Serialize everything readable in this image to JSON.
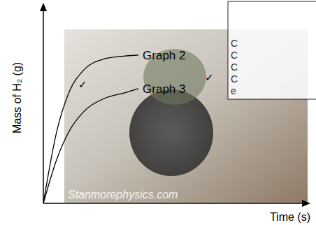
{
  "chart_data": {
    "type": "line",
    "x_label": "Time (s)",
    "y_label": "Mass of H₂ (g)",
    "x": [
      0,
      0.5,
      1,
      1.5,
      2.3,
      3.1,
      3.6
    ],
    "series": [
      {
        "name": "Graph 2",
        "color": "#000000",
        "values": [
          0,
          3.6,
          5.7,
          6.7,
          7.3,
          7.45,
          7.5
        ]
      },
      {
        "name": "Graph 3",
        "color": "#000000",
        "values": [
          0,
          2.2,
          3.7,
          4.6,
          5.3,
          5.6,
          5.8
        ]
      }
    ],
    "xlim": [
      0,
      10
    ],
    "ylim": [
      0,
      10
    ],
    "tick_labels": false,
    "grid": false,
    "annotations": [
      "✓",
      "✓"
    ],
    "watermark": "Stanmorephysics.com",
    "box_text": [
      "C",
      "C",
      "C",
      "C",
      "e"
    ]
  }
}
